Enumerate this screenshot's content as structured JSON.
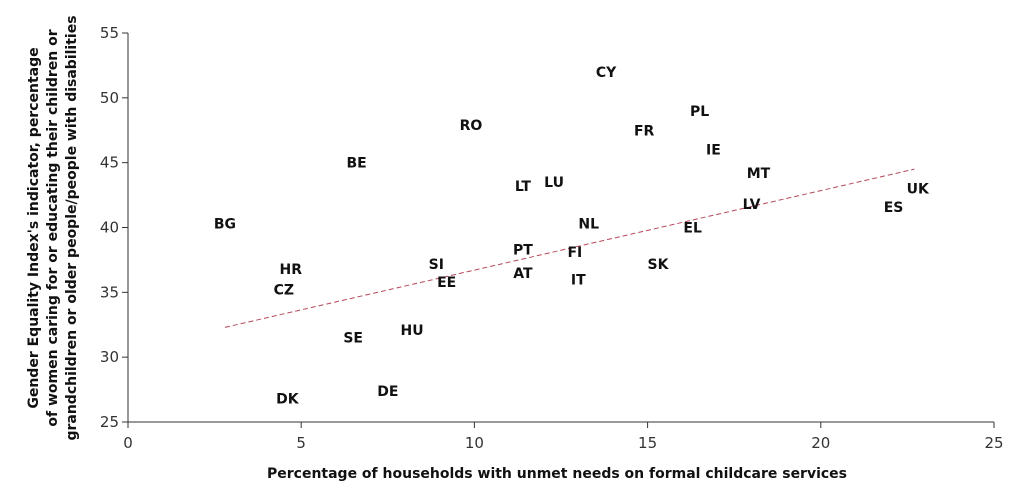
{
  "chart_data": {
    "type": "scatter",
    "title": "",
    "xlabel": "Percentage of households with unmet needs on formal childcare services",
    "ylabel": [
      "Gender Equality Index's indicator, percentage",
      "of women caring for or educating their children or",
      "grandchildren or older people/people with disabilities"
    ],
    "xlim": [
      0,
      25
    ],
    "ylim": [
      25,
      55
    ],
    "xticks": [
      0,
      5,
      10,
      15,
      20,
      25
    ],
    "yticks": [
      25,
      30,
      35,
      40,
      45,
      50,
      55
    ],
    "grid": false,
    "points": [
      {
        "label": "BG",
        "x": 2.8,
        "y": 40.3
      },
      {
        "label": "HR",
        "x": 4.7,
        "y": 36.8
      },
      {
        "label": "CZ",
        "x": 4.5,
        "y": 35.2
      },
      {
        "label": "DK",
        "x": 4.6,
        "y": 26.8
      },
      {
        "label": "BE",
        "x": 6.6,
        "y": 45.0
      },
      {
        "label": "SE",
        "x": 6.5,
        "y": 31.5
      },
      {
        "label": "DE",
        "x": 7.5,
        "y": 27.4
      },
      {
        "label": "HU",
        "x": 8.2,
        "y": 32.1
      },
      {
        "label": "SI",
        "x": 8.9,
        "y": 37.2
      },
      {
        "label": "EE",
        "x": 9.2,
        "y": 35.8
      },
      {
        "label": "RO",
        "x": 9.9,
        "y": 47.9
      },
      {
        "label": "PT",
        "x": 11.4,
        "y": 38.3
      },
      {
        "label": "AT",
        "x": 11.4,
        "y": 36.5
      },
      {
        "label": "LT",
        "x": 11.4,
        "y": 43.2
      },
      {
        "label": "LU",
        "x": 12.3,
        "y": 43.5
      },
      {
        "label": "FI",
        "x": 12.9,
        "y": 38.1
      },
      {
        "label": "IT",
        "x": 13.0,
        "y": 36.0
      },
      {
        "label": "NL",
        "x": 13.3,
        "y": 40.3
      },
      {
        "label": "CY",
        "x": 13.8,
        "y": 52.0
      },
      {
        "label": "FR",
        "x": 14.9,
        "y": 47.5
      },
      {
        "label": "SK",
        "x": 15.3,
        "y": 37.2
      },
      {
        "label": "EL",
        "x": 16.3,
        "y": 40.0
      },
      {
        "label": "PL",
        "x": 16.5,
        "y": 49.0
      },
      {
        "label": "IE",
        "x": 16.9,
        "y": 46.0
      },
      {
        "label": "LV",
        "x": 18.0,
        "y": 41.8
      },
      {
        "label": "MT",
        "x": 18.2,
        "y": 44.2
      },
      {
        "label": "ES",
        "x": 22.1,
        "y": 41.6
      },
      {
        "label": "UK",
        "x": 22.8,
        "y": 43.0
      }
    ],
    "trendline": {
      "x": [
        2.8,
        22.7
      ],
      "y": [
        32.3,
        44.5
      ],
      "color": "#b5485a",
      "style": "dashed"
    },
    "colors": {
      "axis": "#333333",
      "text": "#111111"
    }
  }
}
